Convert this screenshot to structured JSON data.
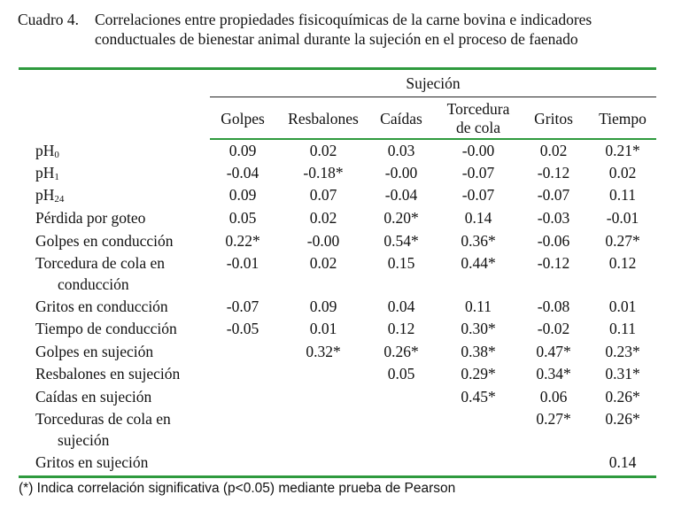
{
  "caption": {
    "label": "Cuadro 4.",
    "line1": "Correlaciones entre propiedades fisicoquímicas de la carne bovina e indicadores",
    "line2": "conductuales de bienestar animal durante la sujeción en el proceso de faenado"
  },
  "table": {
    "group_header": "Sujeción",
    "columns": [
      "Golpes",
      "Resbalones",
      "Caídas",
      "Torcedura",
      "Gritos",
      "Tiempo"
    ],
    "column_line2": [
      "",
      "",
      "",
      "de cola",
      "",
      ""
    ],
    "rows": [
      {
        "label_main": "pH",
        "label_sub": "0",
        "label_line2": "",
        "values": [
          "0.09",
          "0.02",
          "0.03",
          "-0.00",
          "0.02",
          "0.21*"
        ]
      },
      {
        "label_main": "pH",
        "label_sub": "1",
        "label_line2": "",
        "values": [
          "-0.04",
          "-0.18*",
          "-0.00",
          "-0.07",
          "-0.12",
          "0.02"
        ]
      },
      {
        "label_main": "pH",
        "label_sub": "24",
        "label_line2": "",
        "values": [
          "0.09",
          "0.07",
          "-0.04",
          "-0.07",
          "-0.07",
          "0.11"
        ]
      },
      {
        "label_main": "Pérdida por goteo",
        "label_sub": "",
        "label_line2": "",
        "values": [
          "0.05",
          "0.02",
          "0.20*",
          "0.14",
          "-0.03",
          "-0.01"
        ]
      },
      {
        "label_main": "Golpes en conducción",
        "label_sub": "",
        "label_line2": "",
        "values": [
          "0.22*",
          "-0.00",
          "0.54*",
          "0.36*",
          "-0.06",
          "0.27*"
        ]
      },
      {
        "label_main": "Torcedura de cola en",
        "label_sub": "",
        "label_line2": "conducción",
        "values": [
          "-0.01",
          "0.02",
          "0.15",
          "0.44*",
          "-0.12",
          "0.12"
        ]
      },
      {
        "label_main": "Gritos en conducción",
        "label_sub": "",
        "label_line2": "",
        "values": [
          "-0.07",
          "0.09",
          "0.04",
          "0.11",
          "-0.08",
          "0.01"
        ]
      },
      {
        "label_main": "Tiempo de conducción",
        "label_sub": "",
        "label_line2": "",
        "values": [
          "-0.05",
          "0.01",
          "0.12",
          "0.30*",
          "-0.02",
          "0.11"
        ]
      },
      {
        "label_main": "Golpes en sujeción",
        "label_sub": "",
        "label_line2": "",
        "values": [
          "",
          "0.32*",
          "0.26*",
          "0.38*",
          "0.47*",
          "0.23*"
        ]
      },
      {
        "label_main": "Resbalones en sujeción",
        "label_sub": "",
        "label_line2": "",
        "values": [
          "",
          "",
          "0.05",
          "0.29*",
          "0.34*",
          "0.31*"
        ]
      },
      {
        "label_main": "Caídas en sujeción",
        "label_sub": "",
        "label_line2": "",
        "values": [
          "",
          "",
          "",
          "0.45*",
          "0.06",
          "0.26*"
        ]
      },
      {
        "label_main": "Torceduras de cola en",
        "label_sub": "",
        "label_line2": "sujeción",
        "values": [
          "",
          "",
          "",
          "",
          "0.27*",
          "0.26*"
        ]
      },
      {
        "label_main": "Gritos en sujeción",
        "label_sub": "",
        "label_line2": "",
        "values": [
          "",
          "",
          "",
          "",
          "",
          "0.14"
        ]
      }
    ]
  },
  "footnote": "(*) Indica correlación significativa (p<0.05) mediante prueba de Pearson",
  "colors": {
    "rule": "#2e9a3e",
    "text": "#111111"
  }
}
